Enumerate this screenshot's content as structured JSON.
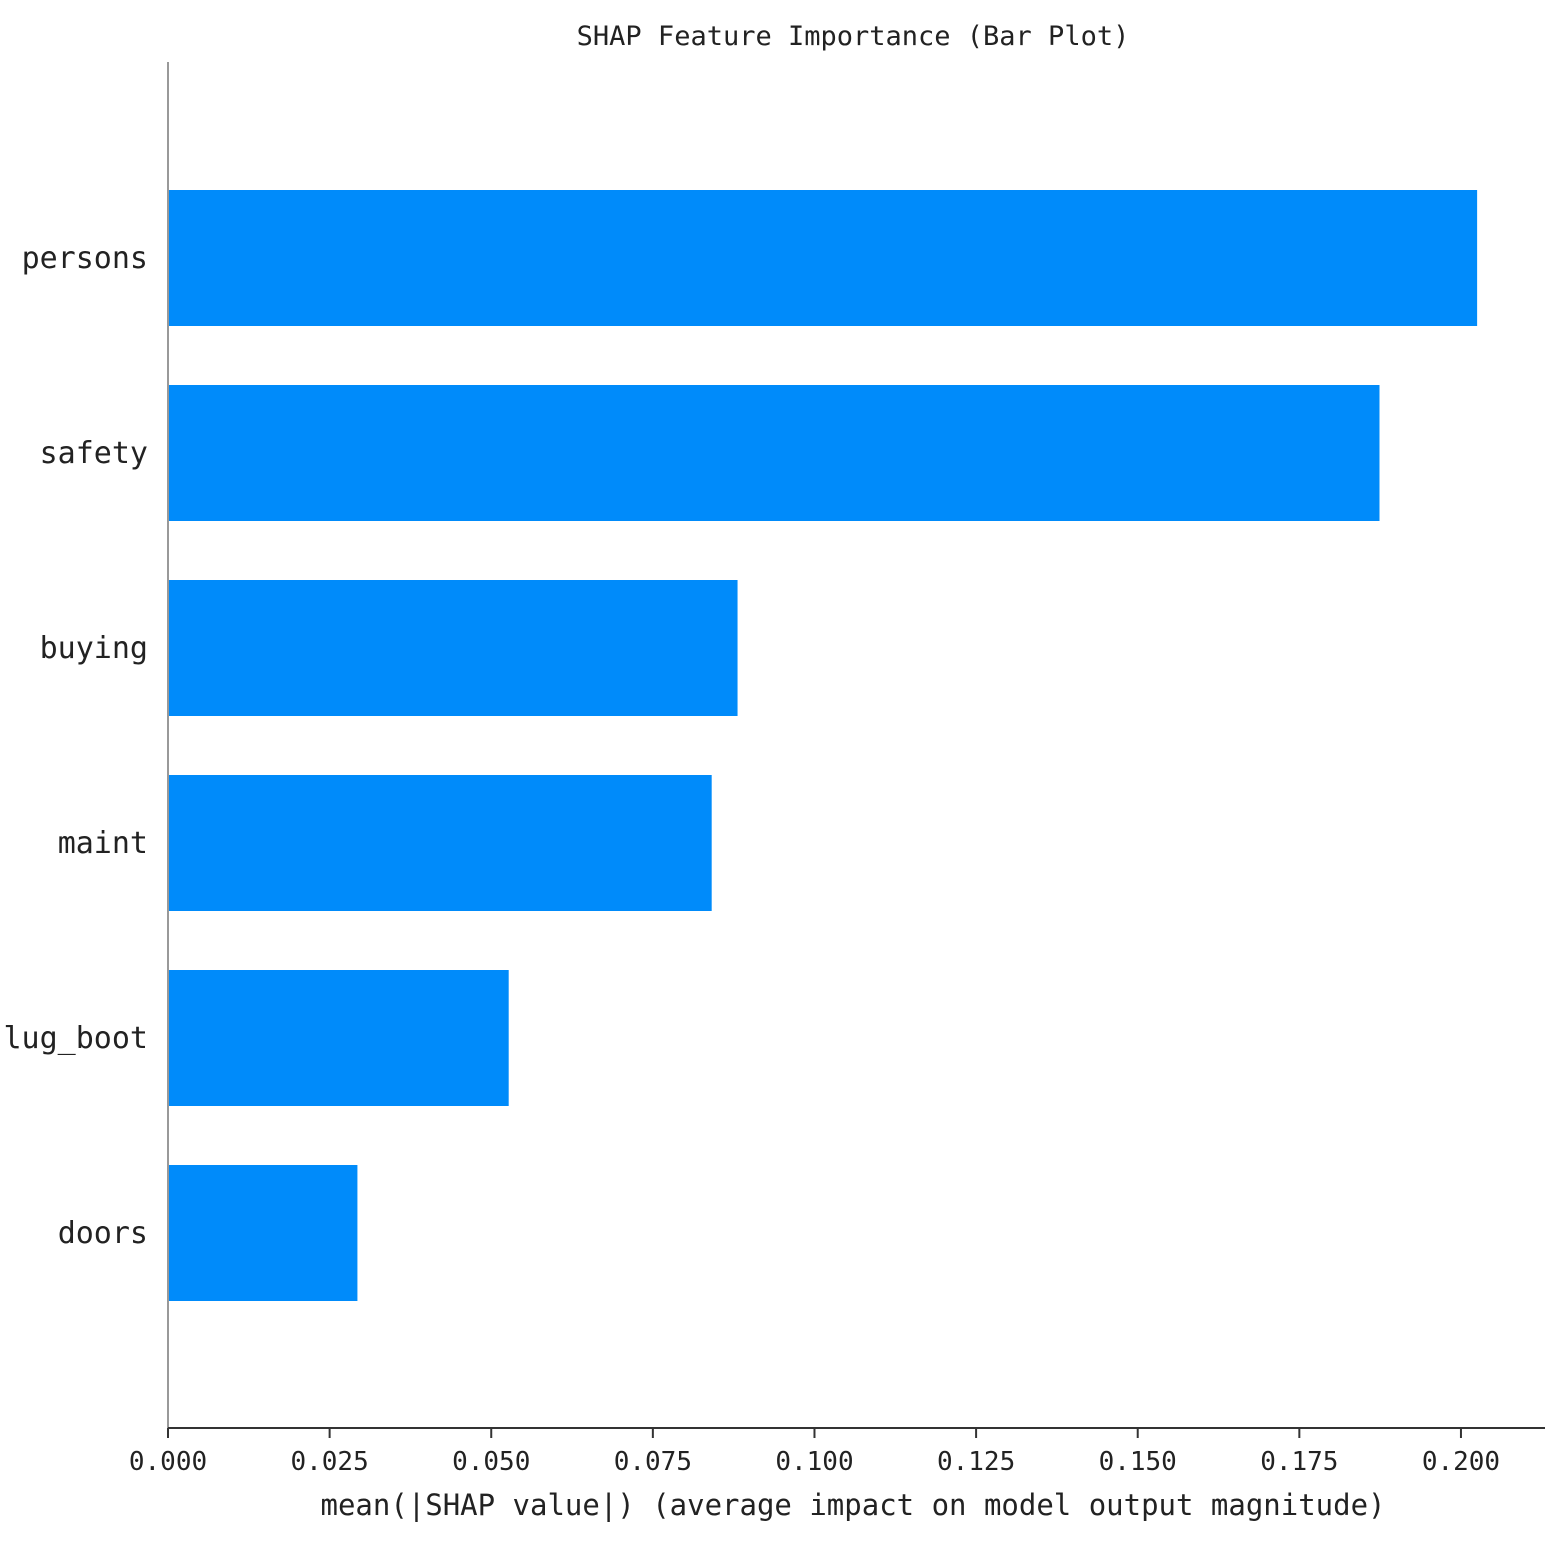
{
  "chart_data": {
    "type": "bar",
    "orientation": "horizontal",
    "title": "SHAP Feature Importance (Bar Plot)",
    "xlabel": "mean(|SHAP value|) (average impact on model output magnitude)",
    "ylabel": "",
    "categories": [
      "persons",
      "safety",
      "buying",
      "maint",
      "lug_boot",
      "doors"
    ],
    "values": [
      0.2025,
      0.1874,
      0.0881,
      0.0841,
      0.0527,
      0.0293
    ],
    "xlim": [
      0,
      0.213
    ],
    "xticks": [
      0.0,
      0.025,
      0.05,
      0.075,
      0.1,
      0.125,
      0.15,
      0.175,
      0.2
    ],
    "xtick_labels": [
      "0.000",
      "0.025",
      "0.050",
      "0.075",
      "0.100",
      "0.125",
      "0.150",
      "0.175",
      "0.200"
    ],
    "grid": false,
    "legend": "none",
    "bar_color": "#008bfa",
    "axis_color": "#333333",
    "yaxis_line_color": "#999999"
  }
}
